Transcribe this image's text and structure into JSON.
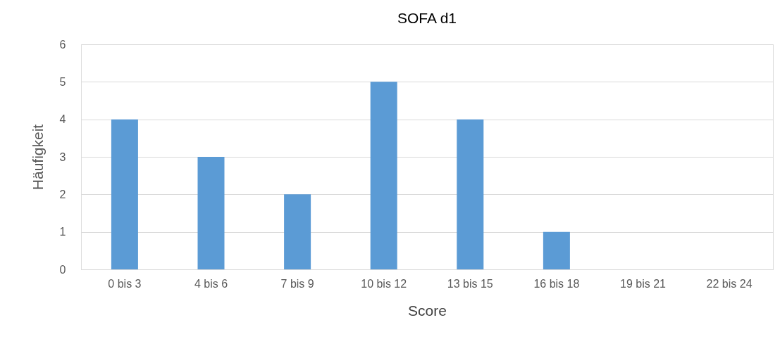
{
  "chart_data": {
    "type": "bar",
    "title": "SOFA d1",
    "xlabel": "Score",
    "ylabel": "Häufigkeit",
    "categories": [
      "0 bis 3",
      "4 bis 6",
      "7 bis 9",
      "10 bis 12",
      "13 bis 15",
      "16 bis 18",
      "19 bis 21",
      "22 bis 24"
    ],
    "values": [
      4,
      3,
      2,
      5,
      4,
      1,
      0,
      0
    ],
    "color": "#5b9bd5",
    "ylim": [
      0,
      6
    ],
    "yticks": [
      0,
      1,
      2,
      3,
      4,
      5,
      6
    ],
    "grid": "y"
  }
}
